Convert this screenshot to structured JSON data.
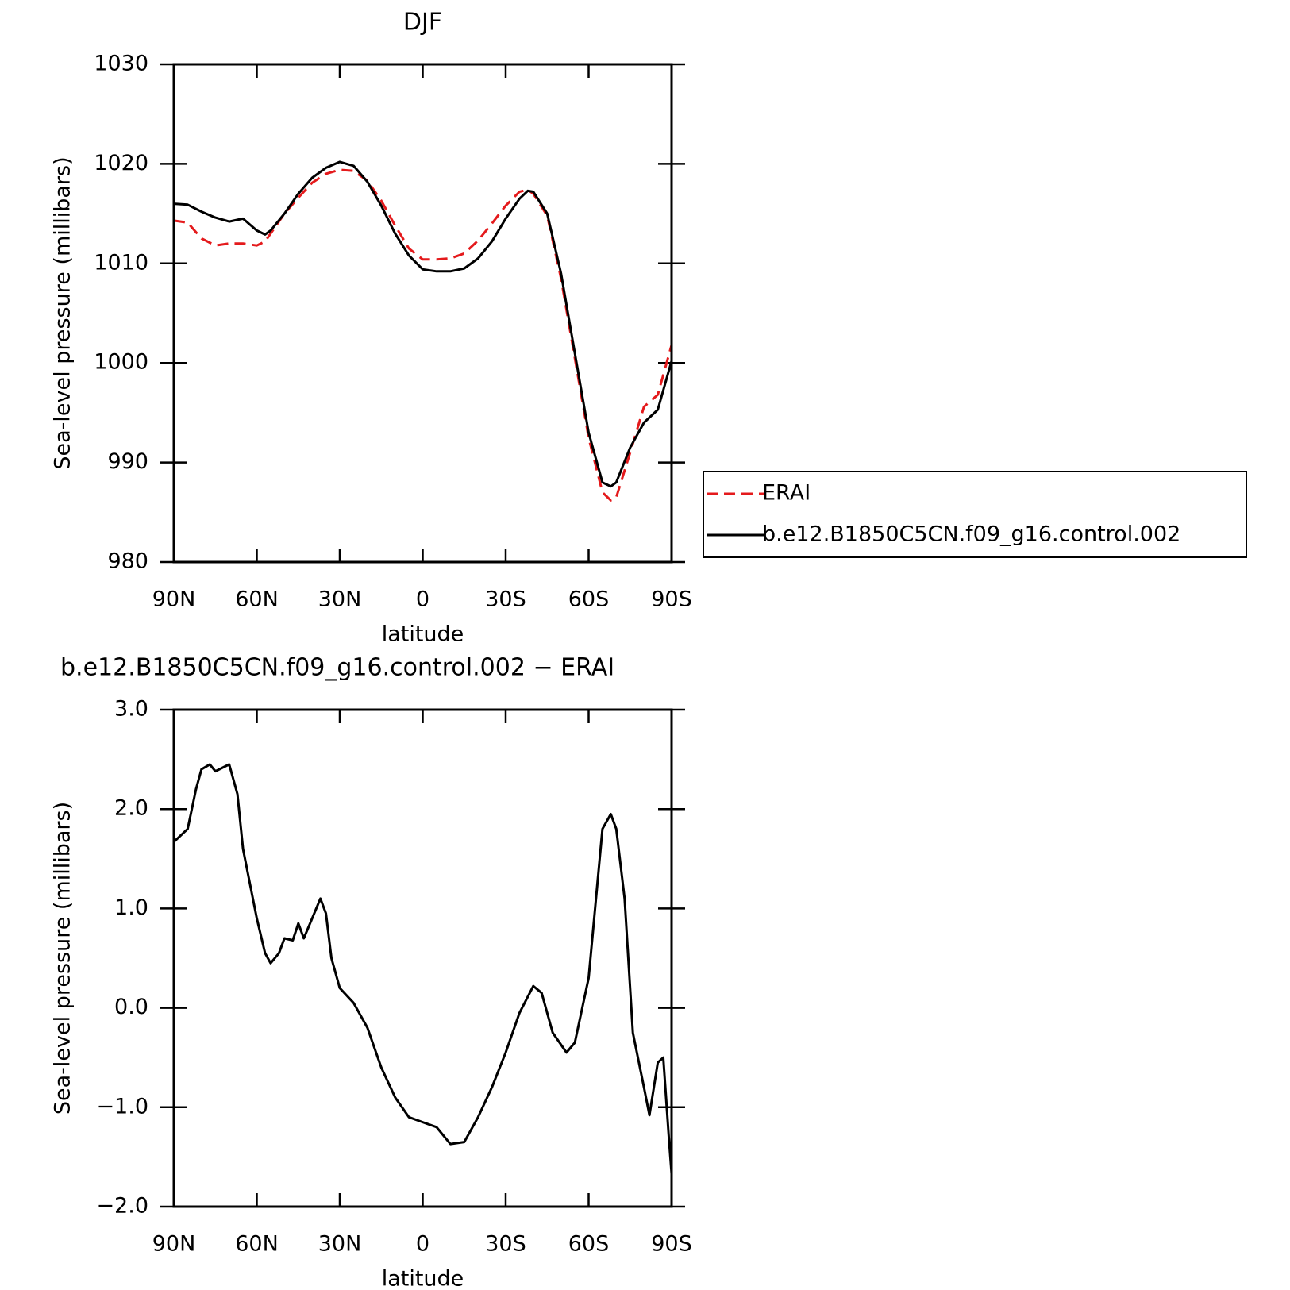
{
  "chart_data": [
    {
      "type": "line",
      "title": "DJF",
      "xlabel": "latitude",
      "ylabel": "Sea-level pressure (millibars)",
      "x": [
        90,
        85,
        80,
        75,
        70,
        65,
        60,
        57,
        55,
        50,
        45,
        40,
        35,
        30,
        25,
        20,
        15,
        10,
        5,
        0,
        -5,
        -10,
        -15,
        -20,
        -25,
        -30,
        -35,
        -38,
        -40,
        -45,
        -50,
        -55,
        -60,
        -65,
        -68,
        -70,
        -75,
        -80,
        -85,
        -90
      ],
      "series": [
        {
          "name": "ERAI",
          "color": "#e41a1c",
          "style": "dashed",
          "values": [
            1014.3,
            1014.1,
            1012.5,
            1011.8,
            1012.0,
            1012.0,
            1011.8,
            1012.2,
            1013.0,
            1015.0,
            1016.6,
            1018.1,
            1019.0,
            1019.4,
            1019.3,
            1018.3,
            1016.3,
            1013.8,
            1011.5,
            1010.4,
            1010.4,
            1010.5,
            1011.0,
            1012.3,
            1014.0,
            1015.8,
            1017.2,
            1017.4,
            1017.0,
            1014.8,
            1008.5,
            1000.5,
            992.5,
            987.0,
            986.2,
            986.5,
            991.0,
            995.6,
            996.8,
            1001.8
          ]
        },
        {
          "name": "b.e12.B1850C5CN.f09_g16.control.002",
          "color": "#000000",
          "style": "solid",
          "values": [
            1016.0,
            1015.9,
            1015.2,
            1014.6,
            1014.2,
            1014.5,
            1013.3,
            1012.9,
            1013.3,
            1015.0,
            1017.0,
            1018.6,
            1019.6,
            1020.2,
            1019.8,
            1018.2,
            1015.8,
            1013.0,
            1010.8,
            1009.4,
            1009.2,
            1009.2,
            1009.5,
            1010.5,
            1012.2,
            1014.5,
            1016.5,
            1017.3,
            1017.2,
            1015.0,
            1009.0,
            1001.0,
            993.0,
            988.0,
            987.6,
            988.0,
            991.5,
            994.0,
            995.3,
            1000.2
          ]
        }
      ],
      "xlim": [
        90,
        -90
      ],
      "xticks": [
        {
          "value": 90,
          "label": "90N"
        },
        {
          "value": 60,
          "label": "60N"
        },
        {
          "value": 30,
          "label": "30N"
        },
        0,
        {
          "value": -30,
          "label": "30S"
        },
        {
          "value": -60,
          "label": "60S"
        },
        {
          "value": -90,
          "label": "90S"
        }
      ],
      "ylim": [
        980,
        1030
      ],
      "yticks": [
        980,
        990,
        1000,
        1010,
        1020,
        1030
      ],
      "legend": "right"
    },
    {
      "type": "line",
      "title": "b.e12.B1850C5CN.f09_g16.control.002 − ERAI",
      "xlabel": "latitude",
      "ylabel": "Sea-level pressure (millibars)",
      "x": [
        90,
        85,
        82,
        80,
        77,
        75,
        70,
        67,
        65,
        60,
        57,
        55,
        52,
        50,
        47,
        45,
        43,
        40,
        37,
        35,
        33,
        30,
        25,
        20,
        15,
        10,
        5,
        0,
        -5,
        -10,
        -15,
        -20,
        -25,
        -30,
        -35,
        -40,
        -43,
        -47,
        -52,
        -55,
        -60,
        -65,
        -68,
        -70,
        -73,
        -76,
        -80,
        -82,
        -85,
        -87,
        -89,
        -90
      ],
      "series": [
        {
          "color": "#000000",
          "style": "solid",
          "values": [
            1.67,
            1.8,
            2.2,
            2.4,
            2.45,
            2.38,
            2.45,
            2.15,
            1.6,
            0.9,
            0.55,
            0.45,
            0.55,
            0.7,
            0.68,
            0.85,
            0.7,
            0.9,
            1.1,
            0.95,
            0.5,
            0.2,
            0.05,
            -0.2,
            -0.6,
            -0.9,
            -1.1,
            -1.15,
            -1.2,
            -1.37,
            -1.35,
            -1.1,
            -0.8,
            -0.45,
            -0.05,
            0.22,
            0.15,
            -0.25,
            -0.45,
            -0.35,
            0.3,
            1.8,
            1.95,
            1.8,
            1.1,
            -0.25,
            -0.8,
            -1.08,
            -0.55,
            -0.5,
            -1.3,
            -1.67
          ]
        }
      ],
      "xlim": [
        90,
        -90
      ],
      "xticks": [
        {
          "value": 90,
          "label": "90N"
        },
        {
          "value": 60,
          "label": "60N"
        },
        {
          "value": 30,
          "label": "30N"
        },
        0,
        {
          "value": -30,
          "label": "30S"
        },
        {
          "value": -60,
          "label": "60S"
        },
        {
          "value": -90,
          "label": "90S"
        }
      ],
      "ylim": [
        -2,
        3
      ],
      "yticks": [
        {
          "value": -2,
          "label": "−2.0"
        },
        {
          "value": -1,
          "label": "−1.0"
        },
        {
          "value": 0,
          "label": "0.0"
        },
        {
          "value": 1,
          "label": "1.0"
        },
        {
          "value": 2,
          "label": "2.0"
        },
        {
          "value": 3,
          "label": "3.0"
        }
      ]
    }
  ]
}
